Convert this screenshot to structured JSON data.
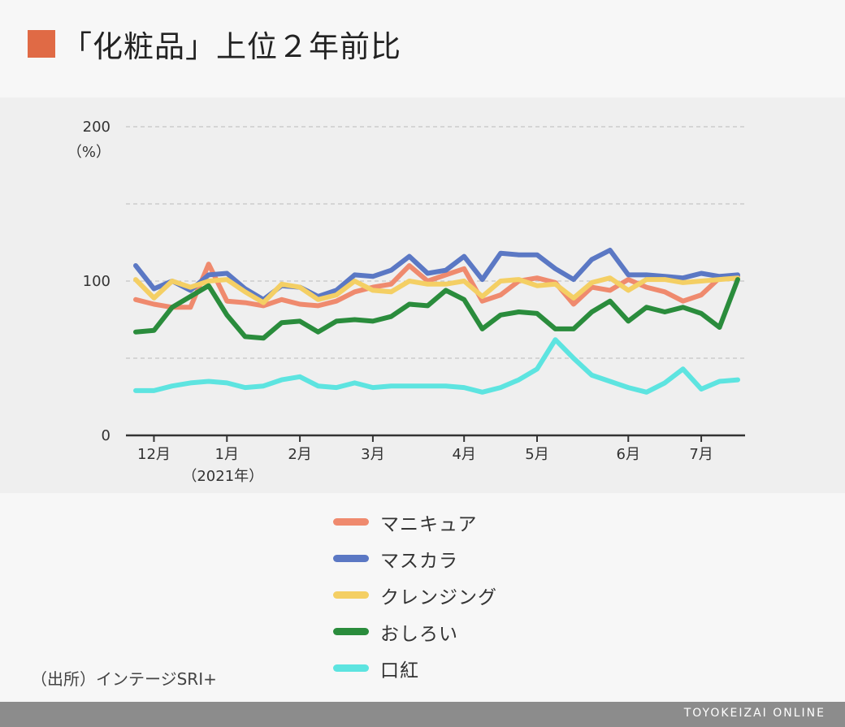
{
  "title": "「化粧品」上位２年前比",
  "source": "（出所）インテージSRI+",
  "footer": "TOYOKEIZAI ONLINE",
  "colors": {
    "title_square": "#e06a45",
    "panel_bg": "#efefef",
    "page_bg": "#f7f7f7",
    "grid": "#bbbbbb",
    "footer_bg": "#8c8c8c"
  },
  "chart_data": {
    "type": "line",
    "title": "「化粧品」上位２年前比",
    "ylabel": "（%）",
    "ylim": [
      0,
      200
    ],
    "yticks": [
      {
        "value": 0,
        "label": "0"
      },
      {
        "value": 50,
        "label": ""
      },
      {
        "value": 100,
        "label": "100"
      },
      {
        "value": 150,
        "label": ""
      },
      {
        "value": 200,
        "label": "200"
      }
    ],
    "grid": true,
    "legend_placement": "bottom",
    "week_count": 34,
    "xticks": [
      {
        "pos": 1.0,
        "label": "12月"
      },
      {
        "pos": 5.0,
        "label": "1月",
        "sublabel": "（2021年）"
      },
      {
        "pos": 9.0,
        "label": "2月"
      },
      {
        "pos": 13.0,
        "label": "3月"
      },
      {
        "pos": 18.0,
        "label": "4月"
      },
      {
        "pos": 22.0,
        "label": "5月"
      },
      {
        "pos": 27.0,
        "label": "6月"
      },
      {
        "pos": 31.0,
        "label": "7月"
      }
    ],
    "series": [
      {
        "name": "マニキュア",
        "color": "#ef8a6e",
        "values": [
          88,
          85,
          83,
          83,
          111,
          87,
          86,
          84,
          88,
          85,
          84,
          87,
          93,
          96,
          98,
          110,
          100,
          104,
          108,
          87,
          91,
          100,
          102,
          99,
          85,
          96,
          94,
          101,
          96,
          93,
          87,
          91,
          102,
          103
        ]
      },
      {
        "name": "マスカラ",
        "color": "#5b78c4",
        "values": [
          110,
          95,
          100,
          94,
          104,
          105,
          95,
          88,
          97,
          96,
          90,
          94,
          104,
          103,
          107,
          116,
          105,
          107,
          116,
          101,
          118,
          117,
          117,
          108,
          101,
          114,
          120,
          104,
          104,
          103,
          102,
          105,
          103,
          104
        ]
      },
      {
        "name": "クレンジング",
        "color": "#f4cf64",
        "values": [
          101,
          89,
          100,
          96,
          100,
          101,
          93,
          86,
          98,
          96,
          88,
          91,
          100,
          94,
          93,
          100,
          98,
          98,
          100,
          90,
          100,
          101,
          97,
          98,
          89,
          99,
          102,
          94,
          101,
          101,
          99,
          100,
          101,
          102
        ]
      },
      {
        "name": "おしろい",
        "color": "#2a8c3c",
        "values": [
          67,
          68,
          83,
          90,
          97,
          78,
          64,
          63,
          73,
          74,
          67,
          74,
          75,
          74,
          77,
          85,
          84,
          94,
          88,
          69,
          78,
          80,
          79,
          69,
          69,
          80,
          87,
          74,
          83,
          80,
          83,
          79,
          70,
          101
        ]
      },
      {
        "name": "口紅",
        "color": "#5de4e0",
        "values": [
          29,
          29,
          32,
          34,
          35,
          34,
          31,
          32,
          36,
          38,
          32,
          31,
          34,
          31,
          32,
          32,
          32,
          32,
          31,
          28,
          31,
          36,
          43,
          62,
          50,
          39,
          35,
          31,
          28,
          34,
          43,
          30,
          35,
          36
        ]
      }
    ]
  }
}
